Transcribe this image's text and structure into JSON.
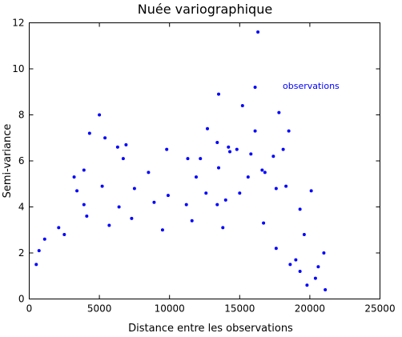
{
  "chart_data": {
    "type": "scatter",
    "title": "Nuée variographique",
    "xlabel": "Distance entre les observations",
    "ylabel": "Semi-variance",
    "xlim": [
      0,
      25000
    ],
    "ylim": [
      0,
      12
    ],
    "xticks": [
      0,
      5000,
      10000,
      15000,
      20000,
      25000
    ],
    "yticks": [
      0,
      2,
      4,
      6,
      8,
      10,
      12
    ],
    "grid": false,
    "legend_placement": "top-right",
    "series": [
      {
        "name": "observations",
        "color": "#0000ff",
        "points": [
          [
            16300,
            11.6
          ],
          [
            5000,
            8.0
          ],
          [
            13500,
            8.9
          ],
          [
            15200,
            8.4
          ],
          [
            16100,
            9.2
          ],
          [
            17800,
            8.1
          ],
          [
            18500,
            7.3
          ],
          [
            4300,
            7.2
          ],
          [
            5400,
            7.0
          ],
          [
            12700,
            7.4
          ],
          [
            16100,
            7.3
          ],
          [
            6300,
            6.6
          ],
          [
            6900,
            6.7
          ],
          [
            9800,
            6.5
          ],
          [
            13400,
            6.8
          ],
          [
            14300,
            6.4
          ],
          [
            15800,
            6.3
          ],
          [
            17400,
            6.2
          ],
          [
            3200,
            5.3
          ],
          [
            3900,
            5.6
          ],
          [
            6700,
            6.1
          ],
          [
            11300,
            6.1
          ],
          [
            12200,
            6.1
          ],
          [
            14200,
            6.6
          ],
          [
            14800,
            6.5
          ],
          [
            16600,
            5.6
          ],
          [
            18100,
            6.5
          ],
          [
            8500,
            5.5
          ],
          [
            11900,
            5.3
          ],
          [
            13500,
            5.7
          ],
          [
            15600,
            5.3
          ],
          [
            16800,
            5.5
          ],
          [
            20100,
            4.7
          ],
          [
            3400,
            4.7
          ],
          [
            5200,
            4.9
          ],
          [
            7500,
            4.8
          ],
          [
            9900,
            4.5
          ],
          [
            11200,
            4.1
          ],
          [
            12600,
            4.6
          ],
          [
            14000,
            4.3
          ],
          [
            15000,
            4.6
          ],
          [
            17600,
            4.8
          ],
          [
            18300,
            4.9
          ],
          [
            3900,
            4.1
          ],
          [
            6400,
            4.0
          ],
          [
            8900,
            4.2
          ],
          [
            13400,
            4.1
          ],
          [
            19300,
            3.9
          ],
          [
            2500,
            2.8
          ],
          [
            4100,
            3.6
          ],
          [
            5700,
            3.2
          ],
          [
            7300,
            3.5
          ],
          [
            9500,
            3.0
          ],
          [
            11600,
            3.4
          ],
          [
            13800,
            3.1
          ],
          [
            16700,
            3.3
          ],
          [
            19600,
            2.8
          ],
          [
            21000,
            2.0
          ],
          [
            20600,
            1.4
          ],
          [
            17600,
            2.2
          ],
          [
            19000,
            1.7
          ],
          [
            20400,
            0.9
          ],
          [
            19800,
            0.6
          ],
          [
            19300,
            1.2
          ],
          [
            21100,
            0.4
          ],
          [
            18600,
            1.5
          ],
          [
            2100,
            3.1
          ],
          [
            1100,
            2.6
          ],
          [
            700,
            2.1
          ],
          [
            500,
            1.5
          ]
        ]
      }
    ]
  }
}
